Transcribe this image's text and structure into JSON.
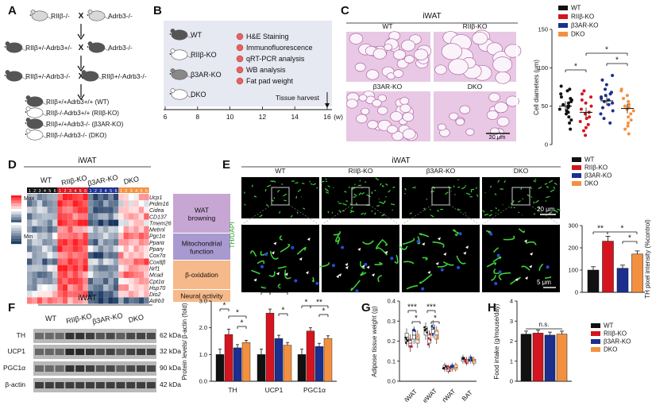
{
  "figure": {
    "panel_letters": [
      "A",
      "B",
      "C",
      "D",
      "E",
      "F",
      "G",
      "H"
    ],
    "colors": {
      "wt": "#111111",
      "ko": "#d4151f",
      "ar": "#1c2f8f",
      "dko": "#f39040",
      "he_bg": "#e8c8e4",
      "he_line": "#b06aa9",
      "purple": "#c7a6d4",
      "lightpurple": "#a89ad0",
      "orange": "#f6b98a",
      "green": "#3ecf3a",
      "grid": "#2b55b5"
    }
  },
  "panel_a": {
    "generations": [
      {
        "left": "RIIβ-/-",
        "right": "Adrb3-/-"
      },
      {
        "left": "RIIβ+/-Adrb3+/-",
        "right": "Adrb3-/-"
      },
      {
        "left": "RIIβ+/-Adrb3-/-",
        "right": "RIIβ+/-Adrb3-/-"
      }
    ],
    "cross_symbol": "X",
    "offspring": [
      "RIIβ+/+Adrb3+/+ (WT)",
      "RIIβ-/-Adrb3+/+ (RIIβ-KO)",
      "RIIβ+/+Adrb3-/- (β3AR-KO)",
      "RIIβ-/-Adrb3-/- (DKO)"
    ]
  },
  "panel_b": {
    "mice": [
      "WT",
      "RIIβ-KO",
      "β3AR-KO",
      "DKO"
    ],
    "analyses": [
      "H&E Staining",
      "Immunofluorescence",
      "qRT-PCR analysis",
      "WB analysis",
      "Fat pad weight"
    ],
    "harvest_label": "Tissue harvest",
    "axis_ticks": [
      "6",
      "8",
      "10",
      "12",
      "14",
      "16"
    ],
    "axis_unit": "(w)"
  },
  "panel_c": {
    "tissue": "iWAT",
    "image_labels": [
      "WT",
      "RIIβ-KO",
      "β3AR-KO",
      "DKO"
    ],
    "scale": "20 μm",
    "ylabel": "Cell diameters (μm)",
    "yticks": [
      "0",
      "50",
      "100",
      "150"
    ],
    "legend": [
      "WT",
      "RIIβ-KO",
      "β3AR-KO",
      "DKO"
    ],
    "sig": [
      "*",
      "*",
      "*"
    ]
  },
  "panel_d": {
    "tissue": "iWAT",
    "groups": [
      "WT",
      "RIIβ-KO",
      "β3AR-KO",
      "DKO"
    ],
    "sample_numbers": [
      "1",
      "2",
      "3",
      "4",
      "5",
      "6"
    ],
    "scale_max": "Max",
    "scale_min": "Min",
    "genes": [
      "Ucp1",
      "Prdm16",
      "Cidea",
      "CD137",
      "Tmem26",
      "Metrnl",
      "Pgc1α",
      "Pparα",
      "Pparγ",
      "Cox7α",
      "Cox8β",
      "Nrf1",
      "Mcad",
      "Cpt1α",
      "Hsp70",
      "Dio2",
      "Adrb3"
    ],
    "categories": [
      "WAT browning",
      "Mitochondrial function",
      "β-oxidation",
      "Neural activity"
    ]
  },
  "panel_e": {
    "tissue": "iWAT",
    "image_labels": [
      "WT",
      "RIIβ-KO",
      "β3AR-KO",
      "DKO"
    ],
    "side_label": "TH/DAPI",
    "scale_top": "20 μm",
    "scale_bottom": "5 μm",
    "legend": [
      "WT",
      "RIIβ-KO",
      "β3AR-KO",
      "DKO"
    ],
    "ylabel": "TH pixel intensity (%control)",
    "yticks": [
      "0",
      "100",
      "200",
      "300"
    ],
    "sig": [
      "**",
      "*",
      "*"
    ]
  },
  "panel_f": {
    "tissue": "iWAT",
    "groups": [
      "WT",
      "RIIβ-KO",
      "β3AR-KO",
      "DKO"
    ],
    "proteins": [
      {
        "name": "TH",
        "kda": "62 kDa"
      },
      {
        "name": "UCP1",
        "kda": "32 kDa"
      },
      {
        "name": "PGC1α",
        "kda": "90 kDa"
      },
      {
        "name": "β-actin",
        "kda": "42 kDa"
      }
    ],
    "ylabel": "Protein levels/ β-actin (fold)",
    "yticks": [
      "0.0",
      "1.0",
      "2.0",
      "3.0"
    ],
    "sig": [
      "*",
      "*",
      "*",
      "*",
      "**",
      "*",
      "*",
      "**",
      "*"
    ]
  },
  "panel_g": {
    "ylabel": "Adipose tissue weight (g)",
    "yticks": [
      "0.0",
      "0.1",
      "0.2",
      "0.3",
      "0.4"
    ],
    "sig": [
      "***",
      "*",
      "***",
      "*"
    ]
  },
  "panel_h": {
    "ylabel": "Food intake (g/mouse/day)",
    "yticks": [
      "0",
      "1",
      "2",
      "3",
      "4"
    ],
    "sig": "n.s.",
    "legend": [
      "WT",
      "RIIβ-KO",
      "β3AR-KO",
      "DKO"
    ]
  },
  "chart_data": [
    {
      "id": "C",
      "type": "scatter",
      "title": "",
      "ylabel": "Cell diameters (μm)",
      "ylim": [
        0,
        150
      ],
      "categories": [
        "WT",
        "RIIβ-KO",
        "β3AR-KO",
        "DKO"
      ],
      "means": [
        50,
        42,
        57,
        47
      ],
      "series": [
        {
          "name": "WT",
          "values": [
            20,
            28,
            32,
            36,
            40,
            42,
            44,
            46,
            48,
            50,
            50,
            52,
            54,
            56,
            58,
            60,
            62,
            66,
            70,
            72,
            76
          ]
        },
        {
          "name": "RIIβ-KO",
          "values": [
            12,
            18,
            22,
            26,
            30,
            34,
            36,
            40,
            42,
            46,
            50,
            54,
            58,
            62,
            66,
            70
          ]
        },
        {
          "name": "β3AR-KO",
          "values": [
            28,
            34,
            40,
            44,
            48,
            52,
            54,
            56,
            58,
            60,
            62,
            64,
            66,
            68,
            72,
            78,
            84,
            90
          ]
        },
        {
          "name": "DKO",
          "values": [
            14,
            20,
            24,
            28,
            32,
            36,
            40,
            44,
            46,
            48,
            50,
            52,
            56,
            60,
            64,
            70,
            72
          ]
        }
      ]
    },
    {
      "id": "E",
      "type": "bar",
      "ylabel": "TH pixel intensity (%control)",
      "ylim": [
        0,
        300
      ],
      "categories": [
        "WT",
        "RIIβ-KO",
        "β3AR-KO",
        "DKO"
      ],
      "values": [
        100,
        230,
        108,
        172
      ],
      "errors": [
        15,
        22,
        14,
        14
      ]
    },
    {
      "id": "F",
      "type": "bar",
      "ylabel": "Protein levels/ β-actin (fold)",
      "ylim": [
        0,
        3
      ],
      "categories": [
        "TH",
        "UCP1",
        "PGC1α"
      ],
      "series": [
        {
          "name": "WT",
          "values": [
            1.0,
            1.0,
            1.0
          ]
        },
        {
          "name": "RIIβ-KO",
          "values": [
            1.75,
            2.55,
            1.88
          ]
        },
        {
          "name": "β3AR-KO",
          "values": [
            1.25,
            1.6,
            1.3
          ]
        },
        {
          "name": "DKO",
          "values": [
            1.45,
            1.35,
            1.6
          ]
        }
      ],
      "errors": [
        [
          0.2,
          0.2,
          0.2
        ],
        [
          0.2,
          0.15,
          0.12
        ],
        [
          0.12,
          0.12,
          0.12
        ],
        [
          0.08,
          0.1,
          0.1
        ]
      ]
    },
    {
      "id": "G",
      "type": "box",
      "ylabel": "Adipose tissue weight (g)",
      "ylim": [
        0,
        0.4
      ],
      "categories": [
        "iWAT",
        "eWAT",
        "rWAT",
        "BAT"
      ],
      "series": [
        {
          "name": "WT",
          "medians": [
            0.22,
            0.25,
            0.07,
            0.11
          ]
        },
        {
          "name": "RIIβ-KO",
          "medians": [
            0.19,
            0.21,
            0.06,
            0.1
          ]
        },
        {
          "name": "β3AR-KO",
          "medians": [
            0.23,
            0.26,
            0.07,
            0.11
          ]
        },
        {
          "name": "DKO",
          "medians": [
            0.21,
            0.23,
            0.07,
            0.1
          ]
        }
      ]
    },
    {
      "id": "H",
      "type": "bar",
      "ylabel": "Food intake (g/mouse/day)",
      "ylim": [
        0,
        4
      ],
      "categories": [
        "WT",
        "RIIβ-KO",
        "β3AR-KO",
        "DKO"
      ],
      "values": [
        2.35,
        2.4,
        2.3,
        2.35
      ],
      "errors": [
        0.15,
        0.15,
        0.15,
        0.15
      ]
    }
  ]
}
